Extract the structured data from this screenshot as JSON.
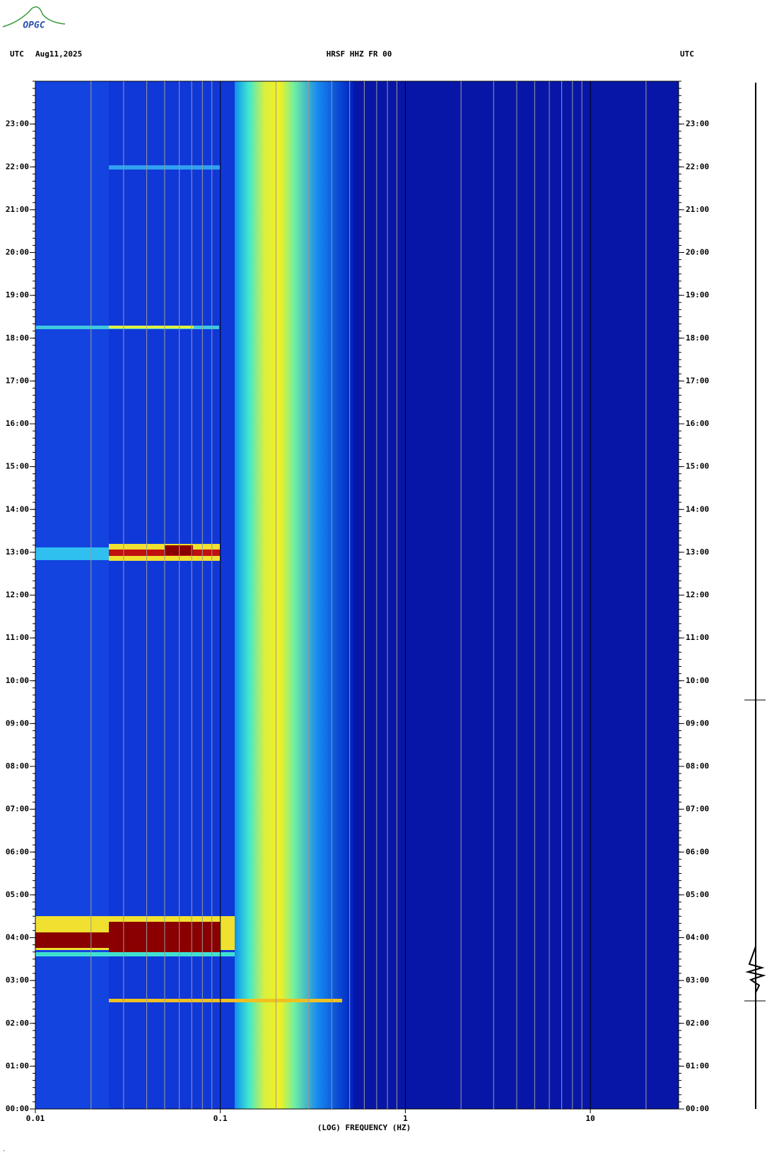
{
  "chart_data": {
    "type": "spectrogram",
    "logo": "OPGC",
    "title": "HRSF HHZ FR 00",
    "left_header": "UTC",
    "date": "Aug11,2025",
    "right_header": "UTC",
    "xlabel": "(LOG) FREQUENCY (HZ)",
    "xscale": "log",
    "xlim": [
      0.01,
      30
    ],
    "xticks": [
      0.01,
      0.1,
      1,
      10
    ],
    "ylim": [
      0,
      24
    ],
    "yticks": [
      {
        "value": 0,
        "label": "00:00"
      },
      {
        "value": 1,
        "label": "01:00"
      },
      {
        "value": 2,
        "label": "02:00"
      },
      {
        "value": 3,
        "label": "03:00"
      },
      {
        "value": 4,
        "label": "04:00"
      },
      {
        "value": 5,
        "label": "05:00"
      },
      {
        "value": 6,
        "label": "06:00"
      },
      {
        "value": 7,
        "label": "07:00"
      },
      {
        "value": 8,
        "label": "08:00"
      },
      {
        "value": 9,
        "label": "09:00"
      },
      {
        "value": 10,
        "label": "10:00"
      },
      {
        "value": 11,
        "label": "11:00"
      },
      {
        "value": 12,
        "label": "12:00"
      },
      {
        "value": 13,
        "label": "13:00"
      },
      {
        "value": 14,
        "label": "14:00"
      },
      {
        "value": 15,
        "label": "15:00"
      },
      {
        "value": 16,
        "label": "16:00"
      },
      {
        "value": 17,
        "label": "17:00"
      },
      {
        "value": 18,
        "label": "18:00"
      },
      {
        "value": 19,
        "label": "19:00"
      },
      {
        "value": 20,
        "label": "20:00"
      },
      {
        "value": 21,
        "label": "21:00"
      },
      {
        "value": 22,
        "label": "22:00"
      },
      {
        "value": 23,
        "label": "23:00"
      }
    ],
    "grid": true
  }
}
